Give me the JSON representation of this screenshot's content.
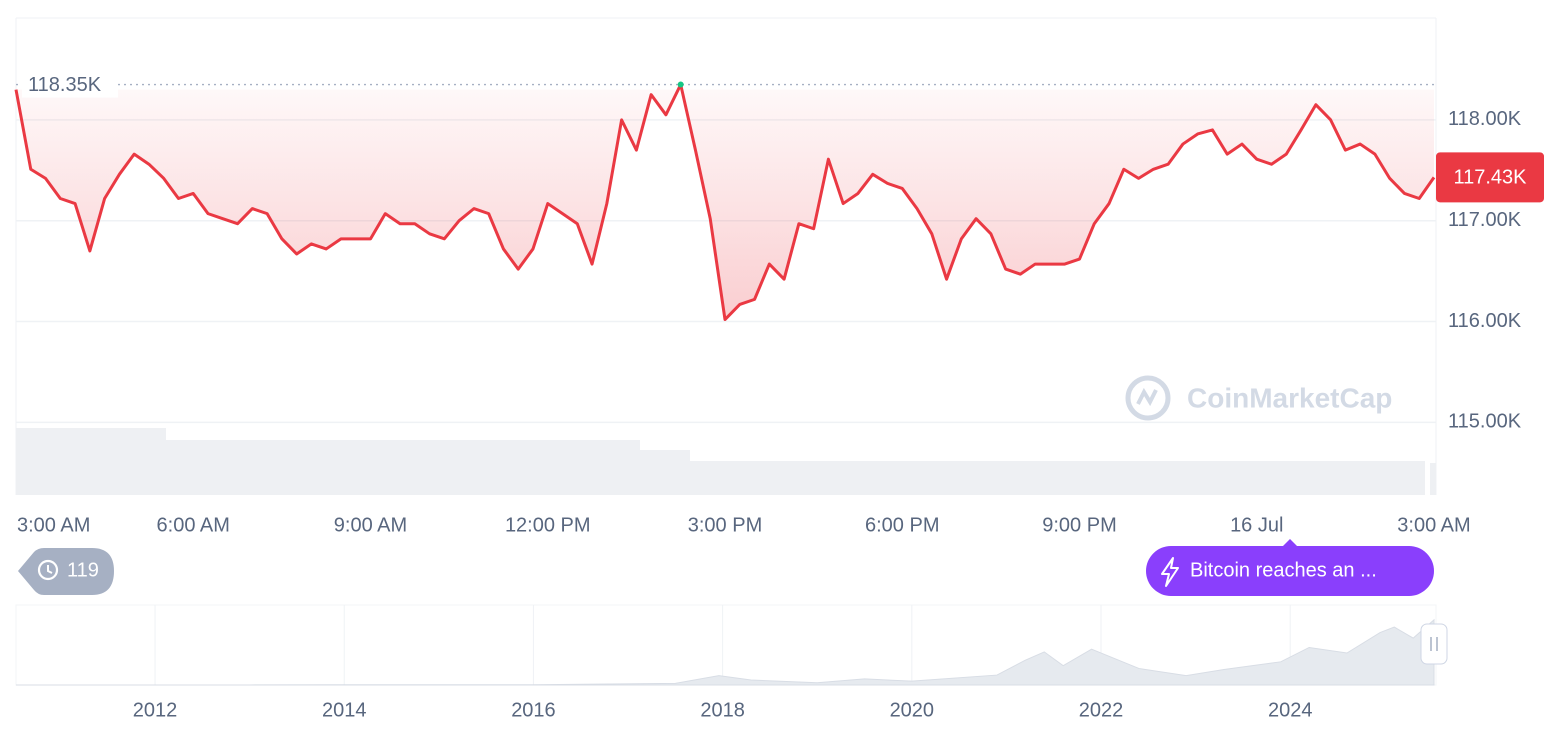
{
  "chart_data": [
    {
      "type": "line",
      "xlim": [
        3,
        27
      ],
      "xticks": [
        {
          "value": 3,
          "label": "3:00 AM"
        },
        {
          "value": 6,
          "label": "6:00 AM"
        },
        {
          "value": 9,
          "label": "9:00 AM"
        },
        {
          "value": 12,
          "label": "12:00 PM"
        },
        {
          "value": 15,
          "label": "3:00 PM"
        },
        {
          "value": 18,
          "label": "6:00 PM"
        },
        {
          "value": 21,
          "label": "9:00 PM"
        },
        {
          "value": 24,
          "label": "16 Jul"
        },
        {
          "value": 27,
          "label": "3:00 AM"
        }
      ],
      "ylim": [
        114.28,
        119.01
      ],
      "yticks": [
        {
          "value": 115,
          "label": "115.00K"
        },
        {
          "value": 116,
          "label": "116.00K"
        },
        {
          "value": 117,
          "label": "117.00K"
        },
        {
          "value": 118,
          "label": "118.00K"
        }
      ],
      "grid": true,
      "color": "#ea3943",
      "high_color": "#16c784",
      "x": [
        3,
        3.25,
        3.5,
        3.75,
        4,
        4.25,
        4.5,
        4.75,
        5,
        5.25,
        5.5,
        5.75,
        6,
        6.25,
        6.5,
        6.75,
        7,
        7.25,
        7.5,
        7.75,
        8,
        8.25,
        8.5,
        8.75,
        9,
        9.25,
        9.5,
        9.75,
        10,
        10.25,
        10.5,
        10.75,
        11,
        11.25,
        11.5,
        11.75,
        12,
        12.25,
        12.5,
        12.75,
        13,
        13.25,
        13.5,
        13.75,
        14,
        14.25,
        14.5,
        14.75,
        15,
        15.25,
        15.5,
        15.75,
        16,
        16.25,
        16.5,
        16.75,
        17,
        17.25,
        17.5,
        17.75,
        18,
        18.25,
        18.5,
        18.75,
        19,
        19.25,
        19.5,
        19.75,
        20,
        20.25,
        20.5,
        20.75,
        21,
        21.25,
        21.5,
        21.75,
        22,
        22.25,
        22.5,
        22.75,
        23,
        23.25,
        23.5,
        23.75,
        24,
        24.25,
        24.5,
        24.75,
        25,
        25.25,
        25.5,
        25.75,
        26,
        26.25,
        26.5,
        26.75,
        27
      ],
      "values": [
        118.3,
        117.51,
        117.42,
        117.22,
        117.17,
        116.7,
        117.22,
        117.46,
        117.66,
        117.56,
        117.42,
        117.22,
        117.27,
        117.07,
        117.02,
        116.97,
        117.12,
        117.07,
        116.82,
        116.67,
        116.77,
        116.72,
        116.82,
        116.82,
        116.82,
        117.07,
        116.97,
        116.97,
        116.87,
        116.82,
        117.0,
        117.12,
        117.07,
        116.72,
        116.52,
        116.72,
        117.17,
        117.07,
        116.97,
        116.57,
        117.17,
        118.0,
        117.7,
        118.25,
        118.05,
        118.35,
        117.7,
        117.02,
        116.02,
        116.17,
        116.22,
        116.57,
        116.42,
        116.97,
        116.92,
        117.61,
        117.17,
        117.27,
        117.46,
        117.37,
        117.32,
        117.12,
        116.87,
        116.42,
        116.82,
        117.02,
        116.87,
        116.52,
        116.47,
        116.57,
        116.57,
        116.57,
        116.62,
        116.97,
        117.17,
        117.51,
        117.42,
        117.51,
        117.56,
        117.76,
        117.86,
        117.9,
        117.66,
        117.76,
        117.61,
        117.56,
        117.66,
        117.9,
        118.15,
        118.0,
        117.7,
        117.76,
        117.66,
        117.42,
        117.27,
        117.22,
        117.43
      ],
      "high": {
        "value": 118.35,
        "label": "118.35K"
      },
      "current_price": {
        "value": 117.43,
        "label": "117.43K"
      },
      "watermark": "CoinMarketCap",
      "events_count": 119,
      "event_label": "Bitcoin reaches an ..."
    },
    {
      "type": "area",
      "xlim": [
        2010.53,
        2025.52
      ],
      "xticks": [
        2012,
        2014,
        2016,
        2018,
        2020,
        2022,
        2024
      ],
      "ylim": [
        0,
        145
      ],
      "color": "#e6eaef",
      "x": [
        2010.53,
        2013,
        2014,
        2016,
        2017.5,
        2017.96,
        2018.3,
        2019,
        2019.5,
        2020,
        2020.9,
        2021.2,
        2021.4,
        2021.6,
        2021.9,
        2022.4,
        2022.9,
        2023.3,
        2023.9,
        2024.2,
        2024.6,
        2024.95,
        2025.1,
        2025.3,
        2025.52
      ],
      "values": [
        0,
        0.1,
        0.5,
        0.4,
        3,
        17,
        9,
        4,
        11,
        7,
        18,
        45,
        60,
        35,
        65,
        30,
        17,
        28,
        42,
        68,
        58,
        95,
        105,
        85,
        118
      ]
    }
  ]
}
